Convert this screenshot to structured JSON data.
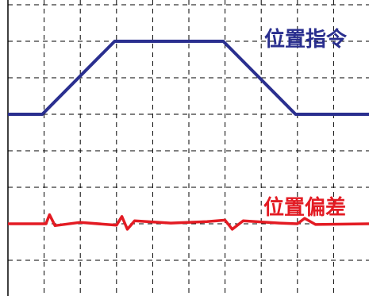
{
  "chart_data": {
    "type": "line",
    "title": "",
    "xlabel": "",
    "ylabel": "",
    "grid": true,
    "xlim": [
      0,
      10
    ],
    "ylim": [
      0,
      8
    ],
    "series": [
      {
        "name": "位置指令",
        "color": "#2a2f8f",
        "x": [
          0,
          0.95,
          2.95,
          5.95,
          7.95,
          10
        ],
        "y": [
          5,
          5,
          7,
          7,
          5,
          5
        ]
      },
      {
        "name": "位置偏差",
        "color": "#e31b23",
        "x": [
          0,
          1.05,
          1.15,
          1.3,
          2,
          3,
          3.15,
          3.3,
          3.5,
          4.5,
          5.5,
          6.0,
          6.2,
          6.5,
          7.5,
          8.0,
          8.2,
          8.5,
          10
        ],
        "y": [
          2,
          2,
          2.25,
          1.95,
          2.04,
          1.96,
          2.2,
          1.85,
          2.08,
          2.02,
          2.06,
          2.1,
          1.85,
          2.08,
          2.02,
          2.0,
          2.15,
          1.98,
          2
        ]
      }
    ]
  }
}
